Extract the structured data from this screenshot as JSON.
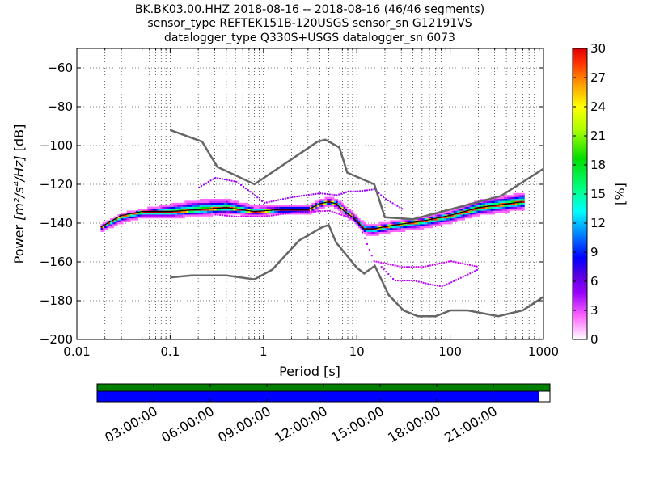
{
  "title_lines": [
    "BK.BK03.00.HHZ   2018-08-16 -- 2018-08-16  (46/46 segments)",
    "sensor_type REFTEK151B-120USGS sensor_sn G12191VS",
    "datalogger_type Q330S+USGS datalogger_sn 6073"
  ],
  "chart_data": {
    "type": "heatmap",
    "xlabel": "Period [s]",
    "ylabel_prefix": "Power ",
    "ylabel_units": "[m²/s⁴/Hz]",
    "ylabel_suffix": " [dB]",
    "x_scale": "log",
    "xlim": [
      0.01,
      1000
    ],
    "ylim": [
      -200,
      -50
    ],
    "x_ticks": [
      {
        "value": 0.01,
        "label": "0.01"
      },
      {
        "value": 0.1,
        "label": "0.1"
      },
      {
        "value": 1,
        "label": "1"
      },
      {
        "value": 10,
        "label": "10"
      },
      {
        "value": 100,
        "label": "100"
      },
      {
        "value": 1000,
        "label": "1000"
      }
    ],
    "y_ticks": [
      {
        "value": -60,
        "label": "−60"
      },
      {
        "value": -80,
        "label": "−80"
      },
      {
        "value": -100,
        "label": "−100"
      },
      {
        "value": -120,
        "label": "−120"
      },
      {
        "value": -140,
        "label": "−140"
      },
      {
        "value": -160,
        "label": "−160"
      },
      {
        "value": -180,
        "label": "−180"
      },
      {
        "value": -200,
        "label": "−200"
      }
    ],
    "grid": true,
    "colorbar": {
      "label": "[%]",
      "range": [
        0,
        30
      ],
      "ticks": [
        {
          "value": 0,
          "label": "0"
        },
        {
          "value": 3,
          "label": "3"
        },
        {
          "value": 6,
          "label": "6"
        },
        {
          "value": 9,
          "label": "9"
        },
        {
          "value": 12,
          "label": "12"
        },
        {
          "value": 15,
          "label": "15"
        },
        {
          "value": 18,
          "label": "18"
        },
        {
          "value": 21,
          "label": "21"
        },
        {
          "value": 24,
          "label": "24"
        },
        {
          "value": 27,
          "label": "27"
        },
        {
          "value": 30,
          "label": "30"
        }
      ]
    },
    "noise_model_high": [
      [
        0.1,
        -92
      ],
      [
        0.22,
        -98
      ],
      [
        0.32,
        -111
      ],
      [
        0.8,
        -120
      ],
      [
        3.8,
        -98
      ],
      [
        4.6,
        -97
      ],
      [
        6.5,
        -101
      ],
      [
        7.9,
        -114
      ],
      [
        15.4,
        -120
      ],
      [
        20,
        -137
      ],
      [
        40,
        -138
      ],
      [
        350,
        -126
      ],
      [
        1000,
        -112
      ]
    ],
    "noise_model_low": [
      [
        0.1,
        -168
      ],
      [
        0.17,
        -167
      ],
      [
        0.4,
        -167
      ],
      [
        0.8,
        -169
      ],
      [
        1.24,
        -164
      ],
      [
        2.4,
        -149
      ],
      [
        4.3,
        -142
      ],
      [
        5,
        -141
      ],
      [
        6,
        -150
      ],
      [
        10,
        -163
      ],
      [
        12,
        -166
      ],
      [
        15.6,
        -162
      ],
      [
        21.9,
        -177
      ],
      [
        31.6,
        -185
      ],
      [
        45,
        -188
      ],
      [
        70,
        -188
      ],
      [
        101,
        -185
      ],
      [
        154,
        -185
      ],
      [
        328,
        -188
      ],
      [
        600,
        -185
      ],
      [
        1000,
        -178
      ]
    ],
    "psd_mode_curve": [
      [
        0.018,
        -142
      ],
      [
        0.03,
        -136
      ],
      [
        0.05,
        -134
      ],
      [
        0.1,
        -134
      ],
      [
        0.2,
        -133
      ],
      [
        0.4,
        -132
      ],
      [
        0.8,
        -134
      ],
      [
        1.5,
        -133
      ],
      [
        3,
        -133
      ],
      [
        4,
        -130
      ],
      [
        5,
        -129
      ],
      [
        6,
        -130
      ],
      [
        7,
        -133
      ],
      [
        9,
        -137
      ],
      [
        12,
        -143
      ],
      [
        15,
        -143
      ],
      [
        25,
        -141
      ],
      [
        50,
        -139
      ],
      [
        100,
        -136
      ],
      [
        200,
        -132
      ],
      [
        600,
        -129
      ]
    ],
    "psd_spread_upper": [
      0.5,
      0.5,
      0.6,
      3,
      4,
      3.5,
      2,
      1.5,
      1.5,
      1.5,
      1.5,
      1.5,
      2,
      1.5,
      2,
      1.5,
      1.5,
      1.5,
      2,
      3,
      4
    ],
    "psd_spread_lower": [
      1.5,
      3,
      2.5,
      2.5,
      2.5,
      2.5,
      1.5,
      1.5,
      1.5,
      1.5,
      1.5,
      1.5,
      1.5,
      1.5,
      2,
      2.5,
      2.5,
      3,
      3,
      3,
      3
    ],
    "psd_outlier_upper": [
      [
        0.2,
        -122
      ],
      [
        0.3,
        -117
      ],
      [
        0.5,
        -119
      ],
      [
        0.7,
        -124
      ],
      [
        1,
        -130
      ],
      [
        2,
        -127
      ],
      [
        4,
        -125
      ],
      [
        6,
        -126
      ],
      [
        8,
        -124
      ],
      [
        10,
        -124
      ],
      [
        15,
        -123
      ],
      [
        20,
        -128
      ],
      [
        30,
        -133
      ]
    ],
    "psd_outlier_lower": [
      [
        0.3,
        -136
      ],
      [
        0.5,
        -137
      ],
      [
        1,
        -137
      ],
      [
        2,
        -135
      ],
      [
        5,
        -134
      ],
      [
        10,
        -139
      ],
      [
        15,
        -160
      ],
      [
        30,
        -163
      ],
      [
        50,
        -163
      ],
      [
        100,
        -160
      ],
      [
        200,
        -163
      ]
    ],
    "psd_outlier_deep": [
      [
        18,
        -163
      ],
      [
        25,
        -170
      ],
      [
        40,
        -170
      ],
      [
        60,
        -172
      ],
      [
        80,
        -173
      ],
      [
        100,
        -171
      ],
      [
        150,
        -167
      ],
      [
        200,
        -164
      ]
    ],
    "timeline": {
      "segment_color": "#008000",
      "coverage_color": "#0000ff",
      "coverage_end_fraction": 0.975,
      "ticks": [
        "03:00:00",
        "06:00:00",
        "09:00:00",
        "12:00:00",
        "15:00:00",
        "18:00:00",
        "21:00:00"
      ]
    }
  }
}
